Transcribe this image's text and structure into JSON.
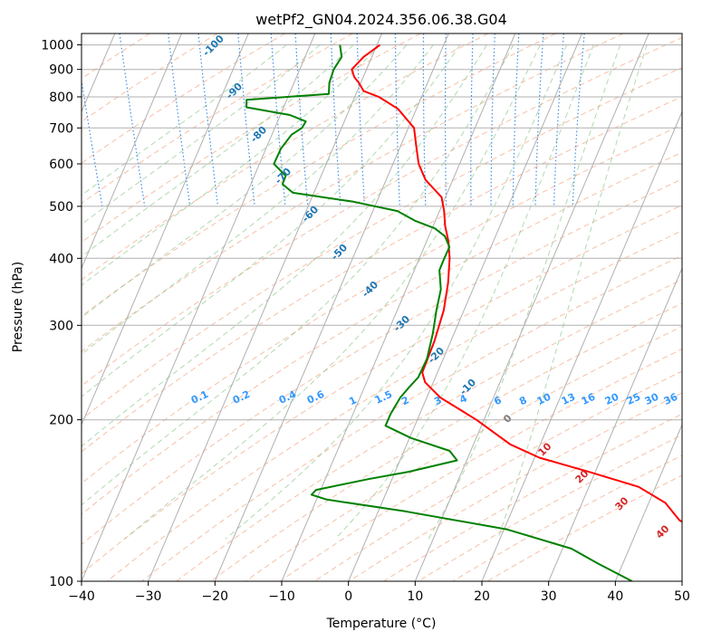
{
  "chart_data": {
    "type": "line",
    "title": "wetPf2_GN04.2024.356.06.38.G04",
    "xlabel": "Temperature (°C)",
    "ylabel": "Pressure (hPa)",
    "xlim": [
      -40,
      50
    ],
    "ylim": [
      1050,
      100
    ],
    "y_scale": "log",
    "grid": true,
    "skew": 35,
    "x_ticks": [
      -40,
      -30,
      -20,
      -10,
      0,
      10,
      20,
      30,
      40,
      50
    ],
    "x_tick_labels": [
      "−40",
      "−30",
      "−20",
      "−10",
      "0",
      "10",
      "20",
      "30",
      "40",
      "50"
    ],
    "y_ticks": [
      1000,
      900,
      800,
      700,
      600,
      500,
      400,
      300,
      200,
      100
    ],
    "y_tick_labels": [
      "1000",
      "900",
      "800",
      "700",
      "600",
      "500",
      "400",
      "300",
      "200",
      "100"
    ],
    "colors": {
      "temperature": "#ff0000",
      "dewpoint": "#008000",
      "isotherm": "#b0b0b0",
      "dry_adiabat": "#f4a582",
      "moist_adiabat": "#7fbf7b",
      "mixing_ratio": "#3a8ee6",
      "dry_adiabat_label": "#1f77b4",
      "moist_label": "#d62728",
      "mixing_label": "#3399ff"
    },
    "series": [
      {
        "name": "",
        "points": [
          [
            1000,
            4.0
          ],
          [
            950,
            0.8
          ],
          [
            900,
            -1.8
          ],
          [
            870,
            -1.9
          ],
          [
            850,
            -1.6
          ],
          [
            820,
            -1.4
          ],
          [
            800,
            0.5
          ],
          [
            760,
            2.6
          ],
          [
            700,
            3.8
          ],
          [
            650,
            3.0
          ],
          [
            600,
            2.2
          ],
          [
            560,
            2.2
          ],
          [
            520,
            3.5
          ],
          [
            490,
            3.0
          ],
          [
            460,
            2.2
          ],
          [
            430,
            1.7
          ],
          [
            400,
            0.8
          ],
          [
            360,
            -1.0
          ],
          [
            320,
            -3.4
          ],
          [
            280,
            -6.8
          ],
          [
            245,
            -10.6
          ],
          [
            235,
            -10.8
          ],
          [
            220,
            -9.5
          ],
          [
            200,
            -5.5
          ],
          [
            180,
            -2.0
          ],
          [
            170,
            1.5
          ],
          [
            160,
            8.0
          ],
          [
            150,
            14.5
          ],
          [
            140,
            17.5
          ],
          [
            130,
            18.5
          ],
          [
            120,
            22.0
          ],
          [
            110,
            26.5
          ],
          [
            100,
            30.0
          ]
        ]
      },
      {
        "name": "",
        "points": [
          [
            1000,
            -2.0
          ],
          [
            950,
            -2.5
          ],
          [
            900,
            -4.5
          ],
          [
            850,
            -6.0
          ],
          [
            810,
            -6.8
          ],
          [
            790,
            -19.5
          ],
          [
            765,
            -20.0
          ],
          [
            740,
            -14.0
          ],
          [
            720,
            -12.0
          ],
          [
            700,
            -13.0
          ],
          [
            680,
            -15.0
          ],
          [
            640,
            -17.5
          ],
          [
            600,
            -19.5
          ],
          [
            570,
            -18.5
          ],
          [
            550,
            -19.5
          ],
          [
            530,
            -18.5
          ],
          [
            510,
            -10.0
          ],
          [
            490,
            -4.0
          ],
          [
            470,
            -2.0
          ],
          [
            455,
            0.5
          ],
          [
            440,
            1.5
          ],
          [
            420,
            1.5
          ],
          [
            400,
            0.0
          ],
          [
            380,
            -1.5
          ],
          [
            350,
            -2.5
          ],
          [
            320,
            -4.5
          ],
          [
            290,
            -6.5
          ],
          [
            260,
            -9.0
          ],
          [
            240,
            -11.5
          ],
          [
            230,
            -13.5
          ],
          [
            220,
            -15.5
          ],
          [
            205,
            -18.0
          ],
          [
            195,
            -19.5
          ],
          [
            185,
            -16.5
          ],
          [
            175,
            -11.5
          ],
          [
            168,
            -11.0
          ],
          [
            160,
            -19.0
          ],
          [
            155,
            -25.5
          ],
          [
            148,
            -34.0
          ],
          [
            145,
            -35.0
          ],
          [
            142,
            -33.0
          ],
          [
            135,
            -22.0
          ],
          [
            125,
            -8.0
          ],
          [
            115,
            0.5
          ],
          [
            108,
            3.5
          ],
          [
            100,
            7.5
          ]
        ]
      }
    ],
    "dry_adiabat_labels": [
      "-100",
      "-90",
      "-80",
      "-70",
      "-60",
      "-50",
      "-40",
      "-30",
      "-20",
      "-10"
    ],
    "mixing_ratio_labels": [
      "0.1",
      "0.2",
      "0.4",
      "0.6",
      "1",
      "1.5",
      "2",
      "3",
      "4",
      "6",
      "8",
      "10",
      "13",
      "16",
      "20",
      "25",
      "30",
      "36"
    ],
    "moist_adiabat_labels": [
      "0",
      "10",
      "20",
      "30",
      "40"
    ]
  }
}
